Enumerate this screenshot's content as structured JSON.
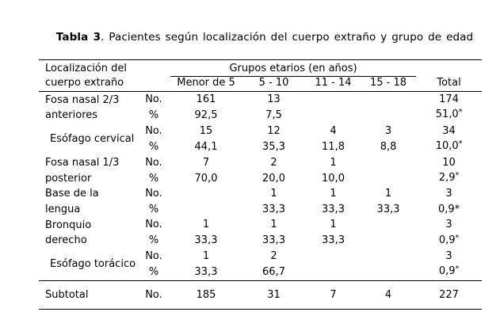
{
  "title": {
    "bold": "Tabla 3",
    "rest": ". Pacientes según localización del cuerpo extraño y grupo de edad"
  },
  "header": {
    "location_line1": "Localización del",
    "location_line2": "cuerpo extraño",
    "group_label": "Grupos etarios (en años)",
    "age_columns": [
      "Menor de 5",
      "5 - 10",
      "11 - 14",
      "15 - 18"
    ],
    "total_label": "Total"
  },
  "row_types": {
    "no": "No.",
    "pct": "%"
  },
  "rows": [
    {
      "location": [
        "Fosa nasal 2/3",
        "anteriores"
      ],
      "indent": false,
      "no_values": [
        "161",
        "13",
        "",
        "",
        "174"
      ],
      "pct_values": [
        "92,5",
        "7,5",
        "",
        ""
      ],
      "pct_total": "51,0",
      "total_marker": "*",
      "marker_superscript": true
    },
    {
      "location": [
        "Esófago cervical"
      ],
      "indent": true,
      "no_values": [
        "15",
        "12",
        "4",
        "3",
        "34"
      ],
      "pct_values": [
        "44,1",
        "35,3",
        "11,8",
        "8,8"
      ],
      "pct_total": "10,0",
      "total_marker": "*",
      "marker_superscript": true
    },
    {
      "location": [
        "Fosa nasal 1/3",
        "posterior"
      ],
      "indent": false,
      "no_values": [
        "7",
        "2",
        "1",
        "",
        "10"
      ],
      "pct_values": [
        "70,0",
        "20,0",
        "10,0",
        ""
      ],
      "pct_total": "2,9",
      "total_marker": "*",
      "marker_superscript": true
    },
    {
      "location": [
        "Base de la",
        "lengua"
      ],
      "indent": false,
      "no_values": [
        "",
        "1",
        "1",
        "1",
        "3"
      ],
      "pct_values": [
        "",
        "33,3",
        "33,3",
        "33,3"
      ],
      "pct_total": "0,9",
      "total_marker": "*",
      "marker_superscript": false
    },
    {
      "location": [
        "Bronquio",
        "derecho"
      ],
      "indent": false,
      "no_values": [
        "1",
        "1",
        "1",
        "",
        "3"
      ],
      "pct_values": [
        "33,3",
        "33,3",
        "33,3",
        ""
      ],
      "pct_total": "0,9",
      "total_marker": "*",
      "marker_superscript": true
    },
    {
      "location": [
        "Esófago torácico"
      ],
      "indent": true,
      "no_values": [
        "1",
        "2",
        "",
        "",
        "3"
      ],
      "pct_values": [
        "33,3",
        "66,7",
        "",
        ""
      ],
      "pct_total": "0,9",
      "total_marker": "*",
      "marker_superscript": true
    }
  ],
  "subtotal": {
    "label": "Subtotal",
    "type": "No.",
    "values": [
      "185",
      "31",
      "7",
      "4",
      "227"
    ]
  }
}
